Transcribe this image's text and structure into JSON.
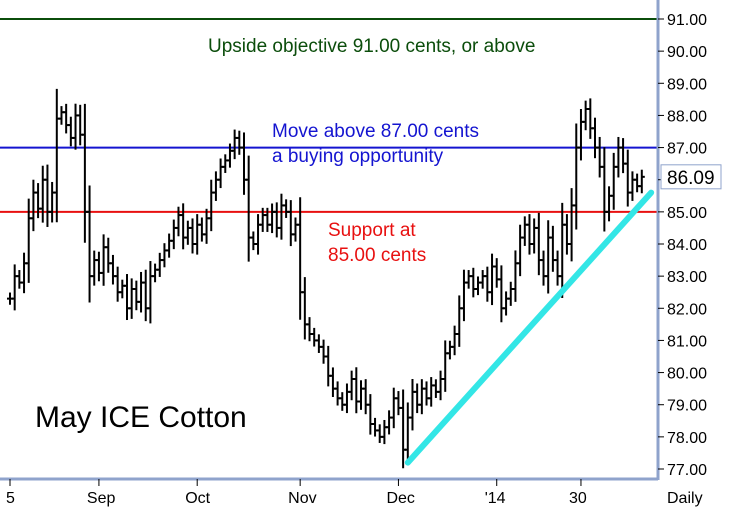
{
  "chart_data": {
    "type": "ohlc-bar",
    "title": "May ICE Cotton",
    "period_label": "Daily",
    "last_price": "86.09",
    "ylim": [
      77.0,
      91.0
    ],
    "y_ticks": [
      "77.00",
      "78.00",
      "79.00",
      "80.00",
      "81.00",
      "82.00",
      "83.00",
      "84.00",
      "85.00",
      "86.00",
      "87.00",
      "88.00",
      "89.00",
      "90.00",
      "91.00"
    ],
    "x_ticks": [
      {
        "label": "5",
        "x": 0
      },
      {
        "label": "Sep",
        "x": 19
      },
      {
        "label": "Oct",
        "x": 40
      },
      {
        "label": "Nov",
        "x": 62
      },
      {
        "label": "Dec",
        "x": 83
      },
      {
        "label": "'14",
        "x": 104
      },
      {
        "label": "30",
        "x": 122
      }
    ],
    "series": [
      {
        "values": [
          82.3,
          83.0,
          82.8,
          83.4,
          84.8,
          85.6,
          85.1,
          86.0,
          85.0,
          85.6,
          87.9,
          88.1,
          87.7,
          87.3,
          88.0,
          87.4,
          85.0,
          83.0,
          83.5,
          83.1,
          83.9,
          83.4,
          83.0,
          82.5,
          82.7,
          82.0,
          82.6,
          82.2,
          82.8,
          82.0,
          83.0,
          83.2,
          83.5,
          83.8,
          84.1,
          84.5,
          84.9,
          84.2,
          84.5,
          84.0,
          84.6,
          84.3,
          84.8,
          85.6,
          86.0,
          86.4,
          86.6,
          86.9,
          87.3,
          87.0,
          86.0,
          84.2,
          84.0,
          84.6,
          84.9,
          84.6,
          85.0,
          84.5,
          85.2,
          85.0,
          84.3,
          84.6,
          82.5,
          81.5,
          81.2,
          81.0,
          80.8,
          80.5,
          79.9,
          79.5,
          79.2,
          79.0,
          79.4,
          79.8,
          79.1,
          79.5,
          79.0,
          78.4,
          78.2,
          78.0,
          78.3,
          78.6,
          79.2,
          78.9,
          77.6,
          78.6,
          79.4,
          79.0,
          79.5,
          79.2,
          79.6,
          79.4,
          79.8,
          80.6,
          80.8,
          81.2,
          82.0,
          82.8,
          83.0,
          82.6,
          82.8,
          83.0,
          82.5,
          83.3,
          82.9,
          82.0,
          82.3,
          82.6,
          83.4,
          84.2,
          84.6,
          84.0,
          84.5,
          83.5,
          83.0,
          84.2,
          83.5,
          83.0,
          84.6,
          84.0,
          85.2,
          87.0,
          87.8,
          88.2,
          87.6,
          87.0,
          86.4,
          85.0,
          85.5,
          86.4,
          87.0,
          86.5,
          85.6,
          86.0,
          85.8,
          86.09
        ]
      }
    ],
    "horizontal_lines": [
      {
        "y": 91.0,
        "color": "#0b4d0b",
        "label": "Upside objective 91.00 cents, or above"
      },
      {
        "y": 87.0,
        "color": "#1414d0",
        "label_lines": [
          "Move above 87.00 cents",
          "a buying opportunity"
        ]
      },
      {
        "y": 85.0,
        "color": "#e81010",
        "label_lines": [
          "Support at",
          "85.00 cents"
        ]
      }
    ],
    "trendline": {
      "color": "#33e6e6",
      "from": {
        "x": 85,
        "y": 77.2
      },
      "to": {
        "x": 137,
        "y": 85.6
      }
    },
    "colors": {
      "bars": "#000000",
      "axis": "#8fa3cc"
    }
  }
}
